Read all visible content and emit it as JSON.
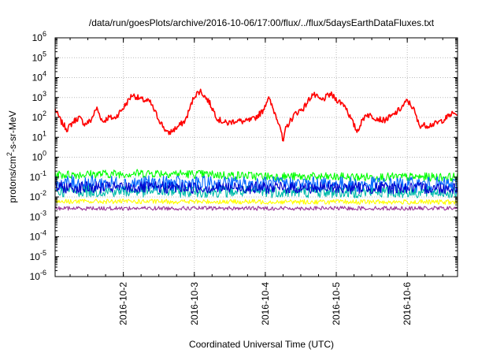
{
  "chart_data": {
    "type": "line",
    "title": "/data/run/goesPlots/archive/2016-10-06/17:00/flux/../flux/5daysEarthDataFluxes.txt",
    "xlabel": "Coordinated Universal Time (UTC)",
    "ylabel": "protons/cm2-s-sr-MeV",
    "yscale": "log",
    "ylim": [
      1e-06,
      1000000.0
    ],
    "y_ticks": [
      {
        "exp": "6",
        "label": "10"
      },
      {
        "exp": "5",
        "label": "10"
      },
      {
        "exp": "4",
        "label": "10"
      },
      {
        "exp": "3",
        "label": "10"
      },
      {
        "exp": "2",
        "label": "10"
      },
      {
        "exp": "1",
        "label": "10"
      },
      {
        "exp": "0",
        "label": "10"
      },
      {
        "exp": "-1",
        "label": "10"
      },
      {
        "exp": "-2",
        "label": "10"
      },
      {
        "exp": "-3",
        "label": "10"
      },
      {
        "exp": "-4",
        "label": "10"
      },
      {
        "exp": "-5",
        "label": "10"
      },
      {
        "exp": "-6",
        "label": "10"
      }
    ],
    "x_range": [
      "2016-10-01T00:56",
      "2016-10-06T17:00"
    ],
    "x_ticks": [
      {
        "t": "2016-10-02T00:00",
        "label": "2016-10-2"
      },
      {
        "t": "2016-10-03T00:00",
        "label": "2016-10-3"
      },
      {
        "t": "2016-10-04T00:00",
        "label": "2016-10-4"
      },
      {
        "t": "2016-10-05T00:00",
        "label": "2016-10-5"
      },
      {
        "t": "2016-10-06T00:00",
        "label": "2016-10-6"
      }
    ],
    "grid": true,
    "series": [
      {
        "color": "#ff0000",
        "noise": 0.15,
        "points": [
          [
            "2016-10-01T00:56",
            250
          ],
          [
            "2016-10-01T03:00",
            60
          ],
          [
            "2016-10-01T05:00",
            25
          ],
          [
            "2016-10-01T07:00",
            60
          ],
          [
            "2016-10-01T09:00",
            100
          ],
          [
            "2016-10-01T11:00",
            45
          ],
          [
            "2016-10-01T13:00",
            70
          ],
          [
            "2016-10-01T15:00",
            300
          ],
          [
            "2016-10-01T17:00",
            60
          ],
          [
            "2016-10-01T19:00",
            100
          ],
          [
            "2016-10-01T21:00",
            90
          ],
          [
            "2016-10-02T00:00",
            300
          ],
          [
            "2016-10-02T03:00",
            1400
          ],
          [
            "2016-10-02T06:00",
            800
          ],
          [
            "2016-10-02T09:00",
            600
          ],
          [
            "2016-10-02T12:00",
            80
          ],
          [
            "2016-10-02T15:00",
            15
          ],
          [
            "2016-10-02T18:00",
            30
          ],
          [
            "2016-10-02T21:00",
            70
          ],
          [
            "2016-10-03T00:00",
            1200
          ],
          [
            "2016-10-03T02:00",
            2200
          ],
          [
            "2016-10-03T05:00",
            600
          ],
          [
            "2016-10-03T08:00",
            80
          ],
          [
            "2016-10-03T11:00",
            50
          ],
          [
            "2016-10-03T14:00",
            70
          ],
          [
            "2016-10-03T17:00",
            60
          ],
          [
            "2016-10-03T20:00",
            80
          ],
          [
            "2016-10-03T23:00",
            200
          ],
          [
            "2016-10-04T01:00",
            1000
          ],
          [
            "2016-10-04T03:00",
            200
          ],
          [
            "2016-10-04T05:00",
            40
          ],
          [
            "2016-10-04T06:00",
            5
          ],
          [
            "2016-10-04T07:00",
            30
          ],
          [
            "2016-10-04T10:00",
            150
          ],
          [
            "2016-10-04T13:00",
            300
          ],
          [
            "2016-10-04T16:00",
            1500
          ],
          [
            "2016-10-04T19:00",
            700
          ],
          [
            "2016-10-04T22:00",
            1500
          ],
          [
            "2016-10-05T00:00",
            800
          ],
          [
            "2016-10-05T03:00",
            400
          ],
          [
            "2016-10-05T05:00",
            80
          ],
          [
            "2016-10-05T07:00",
            20
          ],
          [
            "2016-10-05T10:00",
            150
          ],
          [
            "2016-10-05T13:00",
            100
          ],
          [
            "2016-10-05T16:00",
            70
          ],
          [
            "2016-10-05T19:00",
            120
          ],
          [
            "2016-10-05T22:00",
            300
          ],
          [
            "2016-10-06T00:00",
            700
          ],
          [
            "2016-10-06T02:00",
            300
          ],
          [
            "2016-10-06T04:00",
            40
          ],
          [
            "2016-10-06T07:00",
            40
          ],
          [
            "2016-10-06T10:00",
            50
          ],
          [
            "2016-10-06T13:00",
            90
          ],
          [
            "2016-10-06T15:00",
            150
          ],
          [
            "2016-10-06T17:00",
            150
          ]
        ]
      },
      {
        "color": "#00ff00",
        "noise": 0.22,
        "points": [
          [
            "2016-10-01T00:56",
            0.13
          ],
          [
            "2016-10-02T12:00",
            0.16
          ],
          [
            "2016-10-03T00:00",
            0.14
          ],
          [
            "2016-10-04T00:00",
            0.11
          ],
          [
            "2016-10-05T00:00",
            0.1
          ],
          [
            "2016-10-06T17:00",
            0.1
          ]
        ]
      },
      {
        "color": "#0066ff",
        "noise": 0.4,
        "points": [
          [
            "2016-10-01T00:56",
            0.05
          ],
          [
            "2016-10-03T00:00",
            0.045
          ],
          [
            "2016-10-06T17:00",
            0.04
          ]
        ]
      },
      {
        "color": "#00bbaa",
        "noise": 0.3,
        "points": [
          [
            "2016-10-01T00:56",
            0.02
          ],
          [
            "2016-10-06T17:00",
            0.017
          ]
        ]
      },
      {
        "color": "#0000cc",
        "noise": 0.3,
        "points": [
          [
            "2016-10-01T00:56",
            0.03
          ],
          [
            "2016-10-06T17:00",
            0.028
          ]
        ]
      },
      {
        "color": "#ffff00",
        "noise": 0.12,
        "points": [
          [
            "2016-10-01T00:56",
            0.006
          ],
          [
            "2016-10-06T17:00",
            0.0055
          ]
        ]
      },
      {
        "color": "#993399",
        "noise": 0.1,
        "points": [
          [
            "2016-10-01T00:56",
            0.0027
          ],
          [
            "2016-10-06T17:00",
            0.0027
          ]
        ]
      }
    ]
  }
}
